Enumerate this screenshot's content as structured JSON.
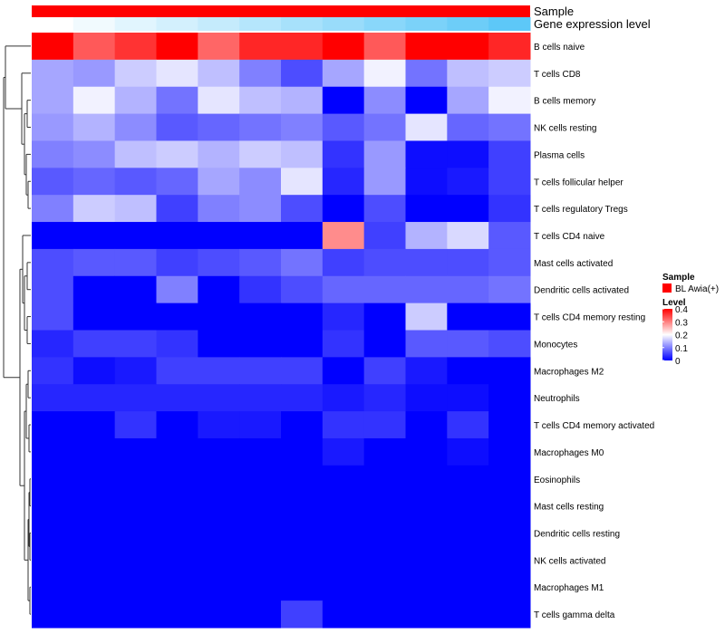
{
  "chart_data": {
    "type": "heatmap",
    "title": "",
    "annotation_tracks": [
      "Sample",
      "Gene expression level"
    ],
    "rows": [
      "B cells naive",
      "T cells CD8",
      "B cells memory",
      "NK cells resting",
      "Plasma cells",
      "T cells follicular helper",
      "T cells regulatory  Tregs",
      "T cells CD4 naive",
      "Mast cells activated",
      "Dendritic cells activated",
      "T cells CD4 memory resting",
      "Monocytes",
      "Macrophages M2",
      "Neutrophils",
      "T cells CD4 memory activated",
      "Macrophages M0",
      "Eosinophils",
      "Mast cells resting",
      "Dendritic cells resting",
      "NK cells activated",
      "Macrophages M1",
      "T cells gamma delta"
    ],
    "values": [
      [
        0.4,
        0.33,
        0.36,
        0.4,
        0.32,
        0.37,
        0.37,
        0.4,
        0.33,
        0.4,
        0.4,
        0.37
      ],
      [
        0.13,
        0.12,
        0.16,
        0.18,
        0.15,
        0.1,
        0.06,
        0.13,
        0.19,
        0.09,
        0.15,
        0.16
      ],
      [
        0.13,
        0.19,
        0.14,
        0.09,
        0.18,
        0.15,
        0.14,
        0.0,
        0.11,
        0.0,
        0.13,
        0.19
      ],
      [
        0.12,
        0.14,
        0.11,
        0.07,
        0.08,
        0.09,
        0.1,
        0.07,
        0.09,
        0.18,
        0.08,
        0.09
      ],
      [
        0.1,
        0.11,
        0.15,
        0.16,
        0.14,
        0.16,
        0.15,
        0.04,
        0.12,
        0.01,
        0.01,
        0.05
      ],
      [
        0.07,
        0.08,
        0.07,
        0.08,
        0.13,
        0.11,
        0.18,
        0.03,
        0.12,
        0.01,
        0.02,
        0.05
      ],
      [
        0.1,
        0.16,
        0.15,
        0.05,
        0.1,
        0.11,
        0.06,
        0.0,
        0.06,
        0.0,
        0.0,
        0.04
      ],
      [
        0.0,
        0.0,
        0.0,
        0.0,
        0.0,
        0.0,
        0.0,
        0.29,
        0.05,
        0.14,
        0.17,
        0.07
      ],
      [
        0.06,
        0.07,
        0.07,
        0.05,
        0.06,
        0.07,
        0.09,
        0.05,
        0.06,
        0.06,
        0.06,
        0.07
      ],
      [
        0.06,
        0.0,
        0.0,
        0.1,
        0.0,
        0.04,
        0.06,
        0.08,
        0.08,
        0.08,
        0.08,
        0.09
      ],
      [
        0.06,
        0.0,
        0.0,
        0.0,
        0.0,
        0.0,
        0.0,
        0.03,
        0.0,
        0.16,
        0.0,
        0.0
      ],
      [
        0.03,
        0.05,
        0.05,
        0.04,
        0.0,
        0.0,
        0.0,
        0.04,
        0.0,
        0.07,
        0.07,
        0.06
      ],
      [
        0.04,
        0.01,
        0.02,
        0.05,
        0.05,
        0.05,
        0.05,
        0.0,
        0.05,
        0.02,
        0.0,
        0.0
      ],
      [
        0.03,
        0.03,
        0.03,
        0.03,
        0.03,
        0.03,
        0.03,
        0.02,
        0.03,
        0.01,
        0.01,
        0.0
      ],
      [
        0.0,
        0.0,
        0.04,
        0.0,
        0.02,
        0.02,
        0.0,
        0.04,
        0.04,
        0.0,
        0.04,
        0.0
      ],
      [
        0.0,
        0.0,
        0.0,
        0.0,
        0.0,
        0.0,
        0.0,
        0.02,
        0.0,
        0.0,
        0.01,
        0.0
      ],
      [
        0.0,
        0.0,
        0.0,
        0.0,
        0.0,
        0.0,
        0.0,
        0.0,
        0.0,
        0.0,
        0.0,
        0.0
      ],
      [
        0.0,
        0.0,
        0.0,
        0.0,
        0.0,
        0.0,
        0.0,
        0.0,
        0.0,
        0.0,
        0.0,
        0.0
      ],
      [
        0.0,
        0.0,
        0.0,
        0.0,
        0.0,
        0.0,
        0.0,
        0.0,
        0.0,
        0.0,
        0.0,
        0.0
      ],
      [
        0.0,
        0.0,
        0.0,
        0.0,
        0.0,
        0.0,
        0.0,
        0.0,
        0.0,
        0.0,
        0.0,
        0.0
      ],
      [
        0.0,
        0.0,
        0.0,
        0.0,
        0.0,
        0.0,
        0.0,
        0.0,
        0.0,
        0.0,
        0.0,
        0.0
      ],
      [
        0.0,
        0.0,
        0.0,
        0.0,
        0.0,
        0.0,
        0.05,
        0.0,
        0.0,
        0.0,
        0.0,
        0.0
      ]
    ],
    "value_range": [
      0,
      0.4
    ],
    "color_scale": [
      "#0000ff",
      "#ffffff",
      "#ff0000"
    ],
    "gene_expression_level": [
      0.0,
      0.08,
      0.17,
      0.25,
      0.33,
      0.42,
      0.5,
      0.58,
      0.67,
      0.75,
      0.83,
      0.92
    ],
    "gene_expression_colors": [
      "#ffffff",
      "#4fc3f7"
    ],
    "sample_color": "#ff0000",
    "legend": {
      "sample_title": "Sample",
      "sample_entries": [
        {
          "label": "BL Awia(+)",
          "color": "#ff0000"
        }
      ],
      "level_title": "Level",
      "level_ticks": [
        "0.4",
        "0.3",
        "0.2",
        "0.1",
        "0"
      ],
      "position": "right"
    },
    "dendrogram": "rows-left"
  }
}
